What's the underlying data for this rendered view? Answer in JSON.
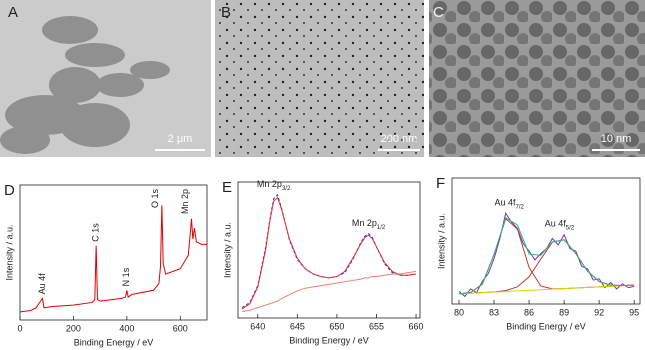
{
  "images": [
    {
      "label": "A",
      "scale_bar": "2 μm"
    },
    {
      "label": "B",
      "scale_bar": "200 nm"
    },
    {
      "label": "C",
      "scale_bar": "10 nm"
    }
  ],
  "chart_data": [
    {
      "type": "line",
      "panel": "D",
      "xlabel": "Binding Energy / eV",
      "ylabel": "Intensity / a.u.",
      "xlim": [
        0,
        700
      ],
      "xticks": [
        0,
        200,
        400,
        600
      ],
      "ylim": [
        0,
        100
      ],
      "annotations": [
        {
          "text": "Au 4f",
          "x": 84,
          "rotated": true
        },
        {
          "text": "C 1s",
          "x": 285,
          "rotated": true
        },
        {
          "text": "N 1s",
          "x": 400,
          "rotated": true
        },
        {
          "text": "O 1s",
          "x": 531,
          "rotated": true
        },
        {
          "text": "Mn 2p",
          "x": 642,
          "rotated": true
        }
      ],
      "series": [
        {
          "color": "#e00000",
          "style": "solid",
          "x": [
            0,
            40,
            60,
            84,
            90,
            120,
            200,
            270,
            280,
            285,
            290,
            300,
            380,
            395,
            400,
            405,
            420,
            500,
            520,
            526,
            531,
            536,
            545,
            600,
            630,
            642,
            647,
            653,
            660,
            680,
            700
          ],
          "values": [
            6,
            7,
            9,
            16,
            9,
            10,
            11,
            13,
            15,
            55,
            15,
            14,
            16,
            17,
            22,
            17,
            19,
            22,
            27,
            40,
            85,
            42,
            34,
            38,
            48,
            75,
            60,
            68,
            58,
            56,
            56
          ]
        }
      ]
    },
    {
      "type": "line",
      "panel": "E",
      "xlabel": "Binding Energy / eV",
      "ylabel": "Intensity / a.u.",
      "xlim": [
        637.5,
        660.5
      ],
      "xticks": [
        640,
        645,
        650,
        655,
        660
      ],
      "ylim": [
        0,
        105
      ],
      "annotations": [
        {
          "text": "Mn 2p",
          "sub": "3/2",
          "x": 642
        },
        {
          "text": "Mn 2p",
          "sub": "1/2",
          "x": 654
        }
      ],
      "series": [
        {
          "color": "#3333cc",
          "style": "dashed",
          "x": [
            638,
            639,
            640,
            641,
            641.5,
            642,
            642.5,
            643,
            644,
            645,
            646,
            647,
            648,
            649,
            650,
            651,
            652,
            653,
            653.5,
            654,
            654.5,
            655,
            656,
            657,
            658,
            659,
            660
          ],
          "values": [
            8,
            12,
            25,
            55,
            75,
            92,
            95,
            85,
            60,
            45,
            38,
            34,
            32,
            31,
            32,
            35,
            45,
            58,
            63,
            65,
            62,
            55,
            42,
            35,
            33,
            33,
            34
          ]
        },
        {
          "color": "#e03030",
          "style": "solid",
          "x": [
            638,
            639,
            640,
            641,
            641.5,
            642,
            642.5,
            643,
            644,
            645,
            646,
            647,
            648,
            649,
            650,
            651,
            652,
            653,
            653.5,
            654,
            654.5,
            655,
            656,
            657,
            658,
            659,
            660
          ],
          "values": [
            7,
            11,
            24,
            53,
            74,
            90,
            93,
            84,
            61,
            46,
            38,
            34,
            32,
            31,
            32,
            36,
            46,
            57,
            62,
            64,
            61,
            55,
            43,
            36,
            33,
            33,
            34
          ]
        },
        {
          "color": "#f08070",
          "style": "solid",
          "x": [
            638,
            639,
            640,
            641,
            641.5,
            642,
            642.5,
            643,
            644,
            645,
            646,
            647,
            648,
            649,
            650,
            651,
            652,
            653,
            653.5,
            654,
            654.5,
            655,
            656,
            657,
            658,
            659,
            660
          ],
          "values": [
            5,
            6,
            8,
            10,
            11,
            12,
            13,
            15,
            18,
            21,
            23,
            24,
            25,
            26,
            27,
            28,
            29,
            30,
            31,
            31,
            32,
            32,
            33,
            34,
            34,
            35,
            36
          ]
        }
      ]
    },
    {
      "type": "line",
      "panel": "F",
      "xlabel": "Binding Energy / eV",
      "ylabel": "Intensity / a.u.",
      "xlim": [
        79.4,
        95.5
      ],
      "xticks": [
        80,
        83,
        86,
        89,
        92,
        95
      ],
      "ylim": [
        0,
        100
      ],
      "annotations": [
        {
          "text": "Au 4f",
          "sub": "7/2",
          "x": 84.3
        },
        {
          "text": "Au 4f",
          "sub": "5/2",
          "x": 88.6
        }
      ],
      "series": [
        {
          "color": "#7b2fbe",
          "style": "solid",
          "x": [
            80,
            80.5,
            81,
            81.5,
            82,
            82.5,
            83,
            83.5,
            84,
            84.5,
            85,
            85.5,
            86,
            86.5,
            87,
            87.5,
            88,
            88.5,
            89,
            89.5,
            90,
            90.5,
            91,
            91.5,
            92,
            92.5,
            93,
            93.5,
            94,
            94.5,
            95
          ],
          "values": [
            10,
            6,
            12,
            9,
            18,
            24,
            36,
            52,
            72,
            65,
            60,
            48,
            42,
            35,
            40,
            44,
            52,
            47,
            55,
            44,
            42,
            30,
            28,
            19,
            20,
            13,
            17,
            12,
            16,
            13,
            14
          ]
        },
        {
          "color": "#c0392b",
          "style": "solid",
          "x": [
            80,
            81,
            82,
            83,
            84,
            85,
            86,
            87,
            88,
            89,
            90,
            91,
            92,
            93,
            94,
            95
          ],
          "values": [
            8,
            9.2,
            15.7,
            39.2,
            67.7,
            59.5,
            29.0,
            14.3,
            12.0,
            12.2,
            12.7,
            13.2,
            13.6,
            14.1,
            14.6,
            15
          ]
        },
        {
          "color": "#c0392b",
          "style": "solid",
          "x": [
            80,
            81,
            82,
            83,
            84,
            85,
            86,
            87,
            88,
            89,
            90,
            91,
            92,
            93,
            94,
            95
          ],
          "values": [
            8,
            8.5,
            9,
            9.5,
            10.6,
            13.6,
            21.5,
            35.6,
            49.1,
            51.0,
            40.0,
            26.2,
            17.8,
            15.0,
            14.7,
            15
          ]
        },
        {
          "color": "#e8d000",
          "style": "solid",
          "x": [
            80,
            81,
            82,
            83,
            84,
            85,
            86,
            87,
            88,
            89,
            90,
            91,
            92,
            93,
            94,
            95
          ],
          "values": [
            8,
            8.5,
            9,
            9.4,
            9.9,
            10.4,
            10.8,
            11.3,
            11.8,
            12.2,
            12.7,
            13.2,
            13.6,
            14.1,
            14.6,
            15
          ]
        },
        {
          "color": "#2bb673",
          "style": "solid",
          "x": [
            80,
            81,
            82,
            83,
            84,
            85,
            86,
            87,
            88,
            89,
            90,
            91,
            92,
            93,
            94,
            95
          ],
          "values": [
            8,
            9.2,
            15.7,
            39.3,
            68.4,
            62.7,
            39.7,
            38.6,
            49.3,
            51.0,
            40.0,
            26.2,
            17.8,
            15.0,
            14.7,
            15
          ]
        }
      ]
    }
  ]
}
